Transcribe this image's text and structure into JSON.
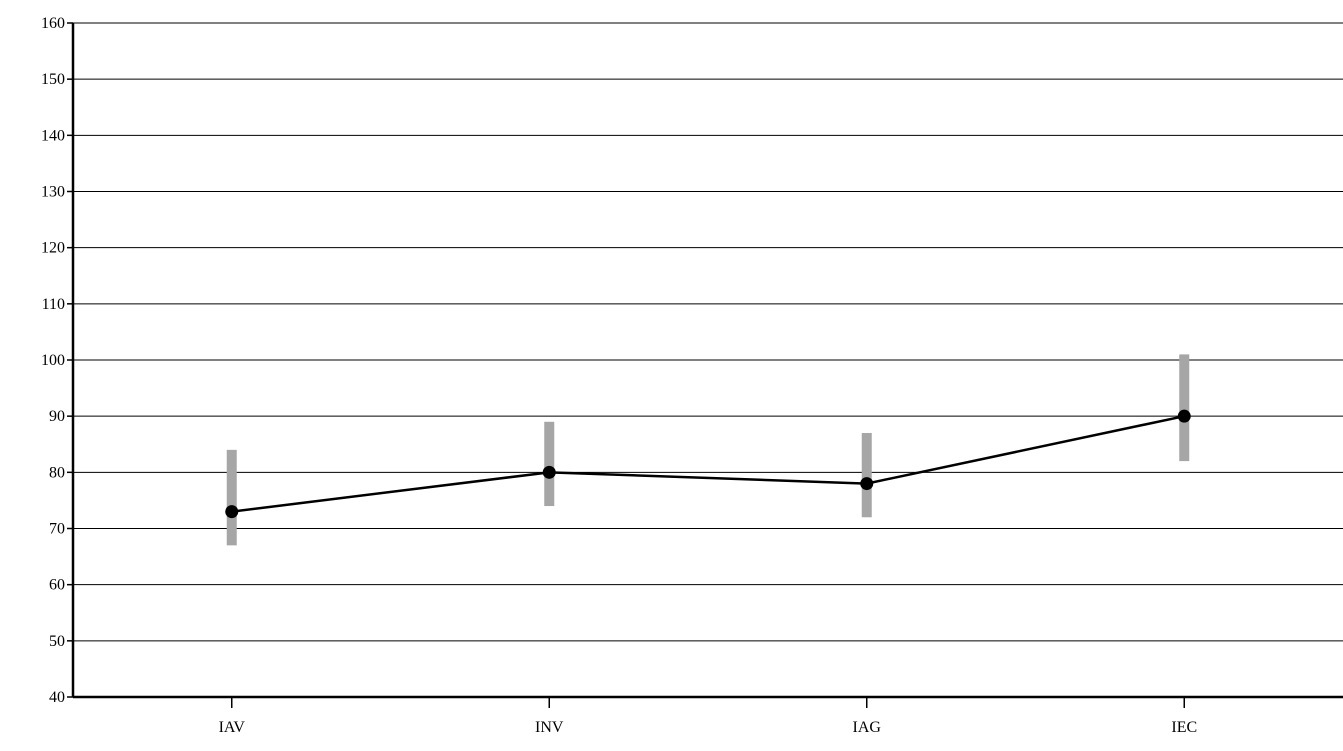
{
  "chart_data": {
    "type": "line",
    "title": "",
    "xlabel": "",
    "ylabel": "",
    "categories": [
      "IAV",
      "INV",
      "IAG",
      "IEC"
    ],
    "series": [
      {
        "values": [
          73,
          80,
          78,
          90
        ],
        "error_low": [
          67,
          74,
          72,
          82
        ],
        "error_high": [
          84,
          89,
          87,
          101
        ]
      }
    ],
    "ylim": [
      40,
      160
    ],
    "yticks": [
      40,
      50,
      60,
      70,
      80,
      90,
      100,
      110,
      120,
      130,
      140,
      150,
      160
    ],
    "grid": true,
    "legend": "none",
    "colors": {
      "line": "#000000",
      "marker": "#000000",
      "error_bar": "#a6a6a6",
      "grid": "#000000"
    }
  }
}
